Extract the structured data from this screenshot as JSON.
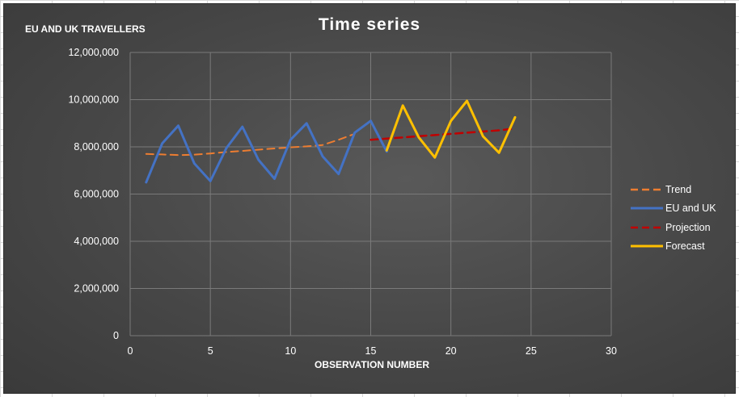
{
  "colors": {
    "trend": "#ED7D31",
    "actual": "#4472C4",
    "projection": "#C00000",
    "forecast": "#FFC000"
  },
  "chart_data": {
    "type": "line",
    "title": "Time series",
    "xlabel": "OBSERVATION NUMBER",
    "ylabel": "EU AND UK TRAVELLERS",
    "xlim": [
      0,
      30
    ],
    "ylim": [
      0,
      12000000
    ],
    "x_ticks": [
      "0",
      "5",
      "10",
      "15",
      "20",
      "25",
      "30"
    ],
    "y_ticks": [
      "0",
      "2,000,000",
      "4,000,000",
      "6,000,000",
      "8,000,000",
      "10,000,000",
      "12,000,000"
    ],
    "grid": true,
    "legend_position": "right",
    "series": [
      {
        "name": "Trend",
        "style": "dashed",
        "x": [
          1,
          2,
          3,
          4,
          5,
          6,
          7,
          8,
          9,
          10,
          11,
          12,
          13,
          14
        ],
        "y": [
          7700000,
          7680000,
          7650000,
          7670000,
          7720000,
          7780000,
          7830000,
          7880000,
          7930000,
          7980000,
          8020000,
          8080000,
          8300000,
          8550000
        ]
      },
      {
        "name": "EU and UK",
        "style": "solid",
        "x": [
          1,
          2,
          3,
          4,
          5,
          6,
          7,
          8,
          9,
          10,
          11,
          12,
          13,
          14,
          15,
          16
        ],
        "y": [
          6500000,
          8150000,
          8900000,
          7300000,
          6550000,
          7950000,
          8850000,
          7450000,
          6650000,
          8300000,
          9000000,
          7600000,
          6850000,
          8600000,
          9100000,
          7800000
        ]
      },
      {
        "name": "Projection",
        "style": "dashed",
        "x": [
          15,
          16,
          17,
          18,
          19,
          20,
          21,
          22,
          23,
          24
        ],
        "y": [
          8300000,
          8350000,
          8400000,
          8450000,
          8500000,
          8550000,
          8600000,
          8650000,
          8700000,
          8780000
        ]
      },
      {
        "name": "Forecast",
        "style": "solid",
        "x": [
          16,
          17,
          18,
          19,
          20,
          21,
          22,
          23,
          24
        ],
        "y": [
          7850000,
          9750000,
          8400000,
          7550000,
          9100000,
          9950000,
          8450000,
          7750000,
          9250000
        ]
      }
    ]
  }
}
